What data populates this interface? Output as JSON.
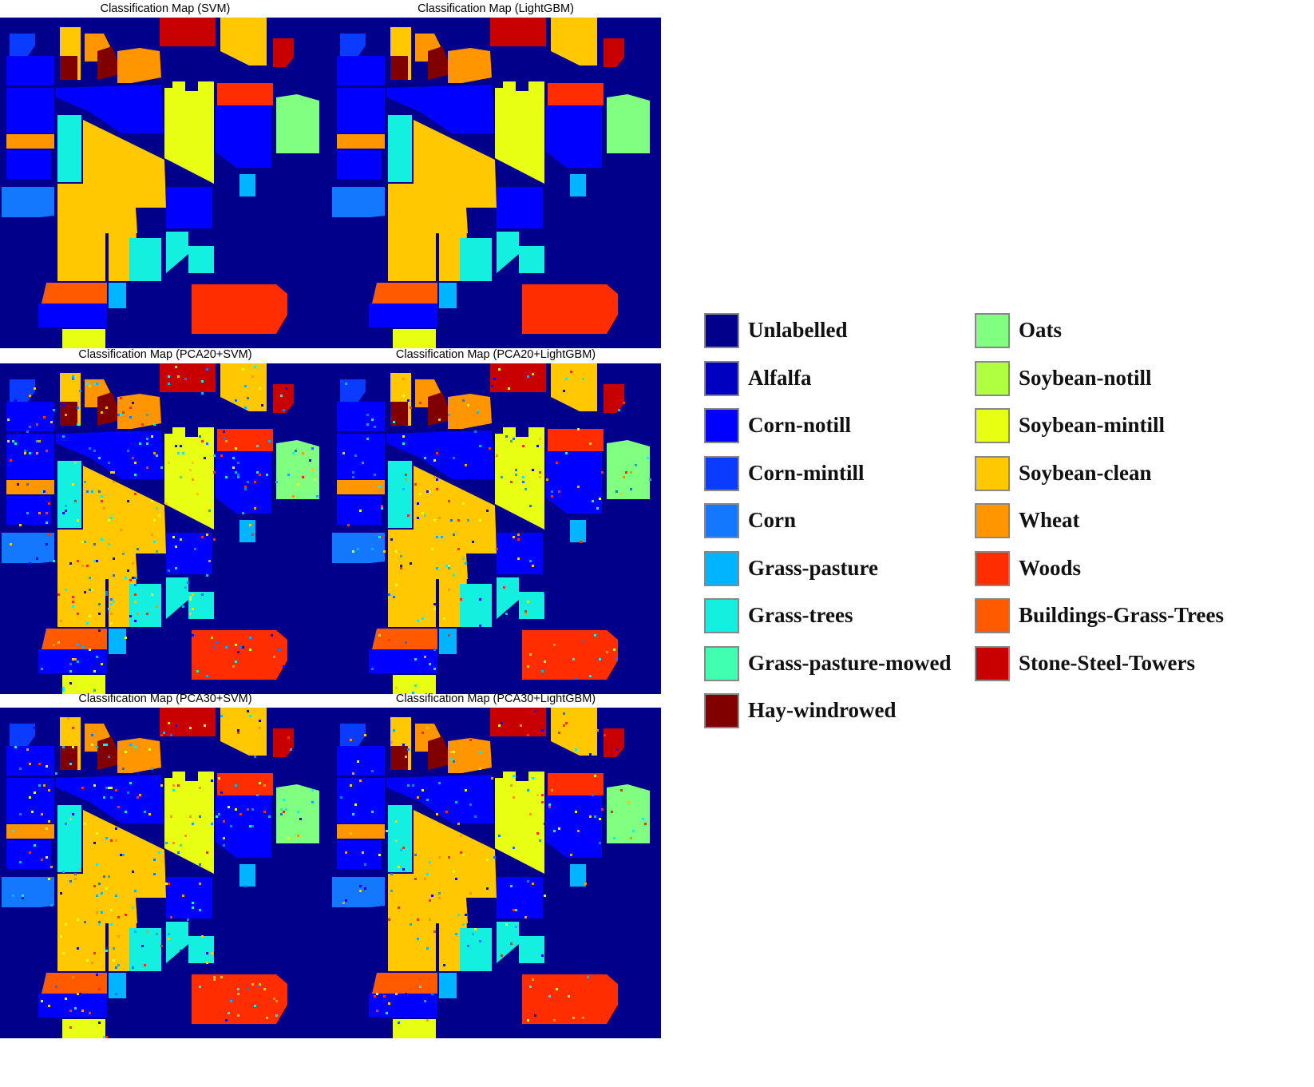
{
  "panels": [
    {
      "title": "Classification Map (SVM)",
      "noise": 0.0
    },
    {
      "title": "Classification Map (LightGBM)",
      "noise": 0.0
    },
    {
      "title": "Classification Map (PCA20+SVM)",
      "noise": 0.06
    },
    {
      "title": "Classification Map (PCA20+LightGBM)",
      "noise": 0.04
    },
    {
      "title": "Classification Map (PCA30+SVM)",
      "noise": 0.05
    },
    {
      "title": "Classification Map (PCA30+LightGBM)",
      "noise": 0.04
    }
  ],
  "legend": [
    {
      "label": "Unlabelled",
      "color": "#00008b"
    },
    {
      "label": "Alfalfa",
      "color": "#0000c0"
    },
    {
      "label": "Corn-notill",
      "color": "#0000ff"
    },
    {
      "label": "Corn-mintill",
      "color": "#0a3cff"
    },
    {
      "label": "Corn",
      "color": "#1478ff"
    },
    {
      "label": "Grass-pasture",
      "color": "#00b4ff"
    },
    {
      "label": "Grass-trees",
      "color": "#14f0e0"
    },
    {
      "label": "Grass-pasture-mowed",
      "color": "#40ffb0"
    },
    {
      "label": "Hay-windrowed",
      "color": "#800000"
    },
    {
      "label": "Oats",
      "color": "#80ff80"
    },
    {
      "label": "Soybean-notill",
      "color": "#b0ff40"
    },
    {
      "label": "Soybean-mintill",
      "color": "#e8ff14"
    },
    {
      "label": "Soybean-clean",
      "color": "#ffc800"
    },
    {
      "label": "Wheat",
      "color": "#ff9600"
    },
    {
      "label": "Woods",
      "color": "#ff2d00"
    },
    {
      "label": "Buildings-Grass-Trees",
      "color": "#ff5a00"
    },
    {
      "label": "Stone-Steel-Towers",
      "color": "#c80000"
    }
  ]
}
